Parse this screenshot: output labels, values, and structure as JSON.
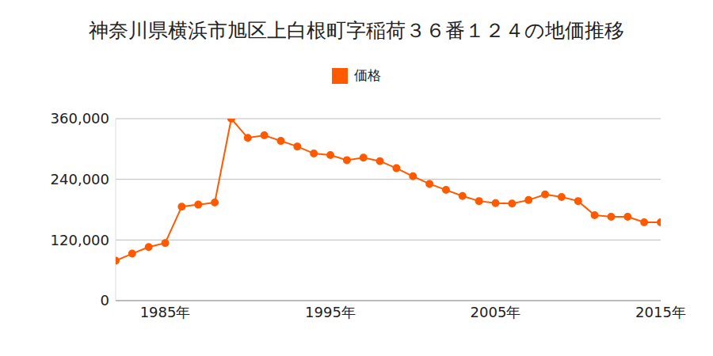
{
  "chart_data": {
    "type": "line",
    "title": "神奈川県横浜市旭区上白根町字稲荷３６番１２４の地価推移",
    "x": [
      1982,
      1983,
      1984,
      1985,
      1986,
      1987,
      1988,
      1989,
      1990,
      1991,
      1992,
      1993,
      1994,
      1995,
      1996,
      1997,
      1998,
      1999,
      2000,
      2001,
      2002,
      2003,
      2004,
      2005,
      2006,
      2007,
      2008,
      2009,
      2010,
      2011,
      2012,
      2013,
      2014,
      2015
    ],
    "series": [
      {
        "name": "価格",
        "color": "#ff5a00",
        "marker": "circle",
        "values": [
          79000,
          93000,
          106000,
          114000,
          186000,
          190000,
          194000,
          360000,
          322000,
          327000,
          316000,
          305000,
          291000,
          288000,
          278000,
          283000,
          276000,
          262000,
          246000,
          231000,
          219000,
          207000,
          197000,
          193000,
          192000,
          199000,
          210000,
          205000,
          197000,
          169000,
          166000,
          166000,
          155000,
          155000
        ]
      }
    ],
    "xlim": [
      1982,
      2015
    ],
    "xticks": [
      {
        "value": 1985,
        "label": "1985年"
      },
      {
        "value": 1995,
        "label": "1995年"
      },
      {
        "value": 2005,
        "label": "2005年"
      },
      {
        "value": 2015,
        "label": "2015年"
      }
    ],
    "ylim": [
      0,
      360000
    ],
    "yticks": [
      0,
      {
        "value": 120000,
        "label": "120,000"
      },
      {
        "value": 240000,
        "label": "240,000"
      },
      {
        "value": 360000,
        "label": "360,000"
      }
    ],
    "grid": true,
    "legend": "top"
  }
}
